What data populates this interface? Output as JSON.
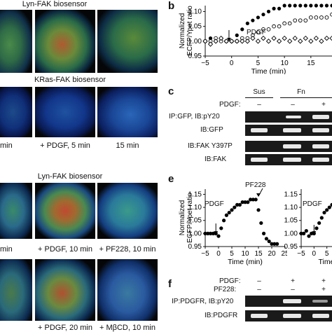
{
  "panel_a": {
    "row1_title": "Lyn-FAK biosensor",
    "row2_title": "KRas-FAK biosensor",
    "row2_captions": [
      "min",
      "+ PDGF, 5 min",
      "15 min"
    ],
    "row3_title": "Lyn-FAK biosensor",
    "row3_captions": [
      "min",
      "+ PDGF, 10 min",
      "+ PF228, 10 min"
    ],
    "row4_captions": [
      "+ PDGF, 20 min",
      "+ MβCD, 10 min"
    ]
  },
  "panel_b": {
    "letter": "b",
    "annotation": "PDGF",
    "chart_data": {
      "type": "scatter",
      "xlabel": "Time (min)",
      "ylabel": "Normalized ECFP/Ypet ratio",
      "xlim": [
        -5,
        19
      ],
      "ylim": [
        0.95,
        1.12
      ],
      "xticks": [
        "-5",
        "0",
        "5",
        "10",
        "15"
      ],
      "yticks": [
        "0.95",
        "1.00",
        "1.05",
        "1.10"
      ],
      "series": [
        {
          "marker": "filled-circle",
          "x": [
            -5,
            -4,
            -3,
            -2,
            -1,
            0,
            1,
            2,
            3,
            4,
            5,
            6,
            7,
            8,
            9,
            10,
            11,
            12,
            13,
            14,
            15,
            16,
            17,
            18,
            19
          ],
          "y": [
            1.0,
            1.01,
            1.0,
            1.01,
            1.0,
            1.0,
            1.02,
            1.04,
            1.06,
            1.07,
            1.08,
            1.09,
            1.1,
            1.11,
            1.11,
            1.12,
            1.12,
            1.12,
            1.12,
            1.12,
            1.12,
            1.12,
            1.12,
            1.12,
            1.12
          ]
        },
        {
          "marker": "open-circle",
          "x": [
            -5,
            -4,
            -3,
            -2,
            -1,
            0,
            1,
            2,
            3,
            4,
            5,
            6,
            7,
            8,
            9,
            10,
            11,
            12,
            13,
            14,
            15,
            16,
            17,
            18,
            19
          ],
          "y": [
            1.0,
            1.0,
            1.01,
            1.0,
            1.0,
            1.0,
            1.0,
            1.01,
            1.01,
            1.02,
            1.03,
            1.04,
            1.04,
            1.05,
            1.05,
            1.06,
            1.06,
            1.07,
            1.07,
            1.07,
            1.08,
            1.08,
            1.08,
            1.08,
            1.09
          ]
        },
        {
          "marker": "open-diamond",
          "x": [
            -5,
            -4,
            -3,
            -2,
            -1,
            0,
            1,
            2,
            3,
            4,
            5,
            6,
            7,
            8,
            9,
            10,
            11,
            12,
            13,
            14,
            15,
            16,
            17,
            18,
            19
          ],
          "y": [
            1.0,
            0.99,
            1.0,
            1.01,
            1.0,
            1.0,
            1.0,
            1.0,
            1.0,
            1.01,
            1.0,
            1.01,
            1.0,
            1.01,
            1.0,
            1.01,
            1.0,
            1.01,
            1.0,
            1.01,
            1.0,
            1.01,
            1.0,
            1.01,
            1.01
          ]
        }
      ]
    }
  },
  "panel_c": {
    "letter": "c",
    "col_sus": "Sus",
    "col_fn": "Fn",
    "pdgf_label": "PDGF:",
    "pdgf_signs": [
      "–",
      "–",
      "+"
    ],
    "rows": [
      "IP:GFP, IB:pY20",
      "IB:GFP",
      "IB:FAK Y397P",
      "IB:FAK"
    ]
  },
  "panel_e": {
    "letter": "e",
    "annot_pdgf": "PDGF",
    "annot_pf228": "PF228",
    "right_annot_pdgf": "PDGF",
    "chart_data": [
      {
        "type": "scatter",
        "xlabel": "Time (min)",
        "ylabel": "Normalized ECFP/Ypet ratio",
        "xlim": [
          -5,
          25
        ],
        "ylim": [
          0.95,
          1.17
        ],
        "xticks": [
          "-5",
          "0",
          "5",
          "10",
          "15",
          "20",
          "25"
        ],
        "yticks": [
          "0.95",
          "1.00",
          "1.05",
          "1.10",
          "1.15"
        ],
        "series": [
          {
            "marker": "filled-circle",
            "x": [
              -5,
              -4,
              -3,
              -2,
              -1,
              0,
              1,
              2,
              3,
              4,
              5,
              6,
              7,
              8,
              9,
              10,
              11,
              12,
              13,
              14,
              15,
              16,
              17,
              18,
              19,
              20,
              21,
              22
            ],
            "y": [
              1.0,
              1.0,
              1.0,
              1.0,
              1.0,
              0.99,
              1.02,
              1.05,
              1.07,
              1.08,
              1.09,
              1.1,
              1.11,
              1.11,
              1.12,
              1.12,
              1.12,
              1.13,
              1.13,
              1.13,
              1.09,
              1.04,
              1.0,
              0.98,
              0.97,
              0.96,
              0.96,
              0.96
            ]
          }
        ]
      },
      {
        "type": "scatter",
        "xlabel": "Time",
        "xlim": [
          -5,
          7
        ],
        "ylim": [
          0.95,
          1.17
        ],
        "xticks": [
          "-5",
          "0",
          "5"
        ],
        "yticks": [
          "0.95",
          "1.00",
          "1.05",
          "1.10",
          "1.15"
        ],
        "series": [
          {
            "marker": "filled-circle",
            "x": [
              -5,
              -4,
              -3,
              -2,
              -1,
              0,
              1,
              2,
              3,
              4,
              5,
              6,
              7
            ],
            "y": [
              1.0,
              1.0,
              1.01,
              0.99,
              1.0,
              1.0,
              1.02,
              1.04,
              1.06,
              1.08,
              1.09,
              1.1,
              1.11
            ]
          }
        ]
      }
    ]
  },
  "panel_f": {
    "letter": "f",
    "pdgf_label": "PDGF:",
    "pf228_label": "PF228:",
    "pdgf_signs": [
      "–",
      "+",
      "+"
    ],
    "pf228_signs": [
      "–",
      "–",
      "+"
    ],
    "rows": [
      "IP:PDGFR, IB:pY20",
      "IB:PDGFR"
    ]
  }
}
